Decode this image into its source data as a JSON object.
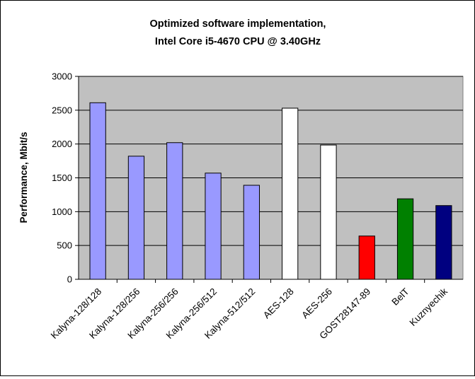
{
  "chart_data": {
    "type": "bar",
    "title": "Optimized software implementation,",
    "subtitle": "Intel Core i5-4670 CPU @ 3.40GHz",
    "xlabel": "",
    "ylabel": "Performance, Mbit/s",
    "ylim": [
      0,
      3000
    ],
    "yticks": [
      0,
      500,
      1000,
      1500,
      2000,
      2500,
      3000
    ],
    "grid": true,
    "legend": "none",
    "plot_background": "#c0c0c0",
    "categories": [
      "Kalyna-128/128",
      "Kalyna-128/256",
      "Kalyna-256/256",
      "Kalyna-256/512",
      "Kalyna-512/512",
      "AES-128",
      "AES-256",
      "GOST28147-89",
      "BelT",
      "Kuznyechik"
    ],
    "values": [
      2610,
      1820,
      2020,
      1570,
      1390,
      2530,
      1985,
      640,
      1190,
      1090
    ],
    "colors": [
      "#9999ff",
      "#9999ff",
      "#9999ff",
      "#9999ff",
      "#9999ff",
      "#ffffff",
      "#ffffff",
      "#ff0000",
      "#008000",
      "#000080"
    ]
  }
}
